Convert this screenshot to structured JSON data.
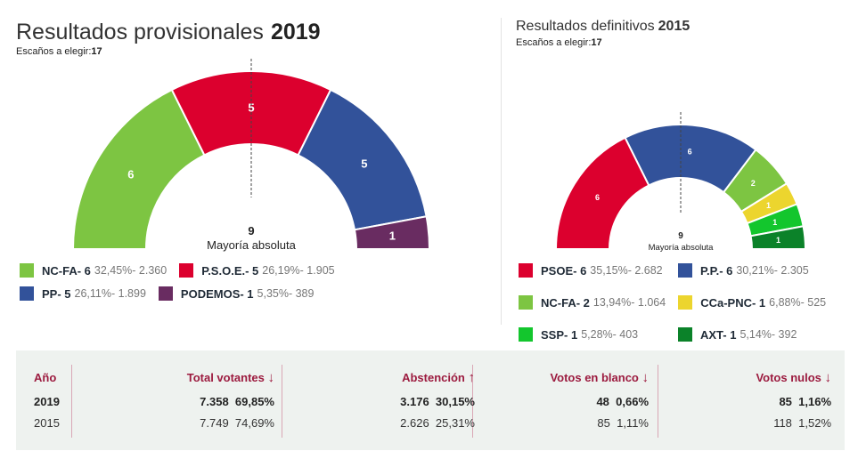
{
  "left": {
    "title": "Resultados provisionales",
    "year": "2019",
    "seats_label": "Escaños a elegir:",
    "seats": "17"
  },
  "right": {
    "title": "Resultados definitivos",
    "year": "2015",
    "seats_label": "Escaños a elegir:",
    "seats": "17"
  },
  "chart_data": [
    {
      "type": "hemicycle",
      "total_seats": 17,
      "majority": "9",
      "majority_label": "Mayoría absoluta",
      "parties": [
        {
          "name": "NC-FA",
          "seats": 6,
          "pct": "32,45%",
          "votes": "2.360",
          "color": "#7dc542"
        },
        {
          "name": "P.S.O.E.",
          "seats": 5,
          "pct": "26,19%",
          "votes": "1.905",
          "color": "#dc002e"
        },
        {
          "name": "PP",
          "seats": 5,
          "pct": "26,11%",
          "votes": "1.899",
          "color": "#32529a"
        },
        {
          "name": "PODEMOS",
          "seats": 1,
          "pct": "5,35%",
          "votes": "389",
          "color": "#692c61"
        }
      ]
    },
    {
      "type": "hemicycle",
      "total_seats": 17,
      "majority": "9",
      "majority_label": "Mayoría absoluta",
      "parties": [
        {
          "name": "PSOE",
          "seats": 6,
          "pct": "35,15%",
          "votes": "2.682",
          "color": "#dc002e"
        },
        {
          "name": "P.P.",
          "seats": 6,
          "pct": "30,21%",
          "votes": "2.305",
          "color": "#32529a"
        },
        {
          "name": "NC-FA",
          "seats": 2,
          "pct": "13,94%",
          "votes": "1.064",
          "color": "#7dc542"
        },
        {
          "name": "CCa-PNC",
          "seats": 1,
          "pct": "6,88%",
          "votes": "525",
          "color": "#ecd52e"
        },
        {
          "name": "SSP",
          "seats": 1,
          "pct": "5,28%",
          "votes": "403",
          "color": "#13c62d"
        },
        {
          "name": "AXT",
          "seats": 1,
          "pct": "5,14%",
          "votes": "392",
          "color": "#0b8229"
        }
      ]
    }
  ],
  "table": {
    "headers": [
      "Año",
      "Total votantes",
      "Abstención",
      "Votos en blanco",
      "Votos nulos"
    ],
    "arrows": [
      "",
      "↓",
      "↑",
      "↓",
      "↓"
    ],
    "rows": [
      [
        "2019",
        "7.358  69,85%",
        "3.176  30,15%",
        "48  0,66%",
        "85  1,16%"
      ],
      [
        "2015",
        "7.749  74,69%",
        "2.626  25,31%",
        "85  1,11%",
        "118  1,52%"
      ]
    ]
  }
}
